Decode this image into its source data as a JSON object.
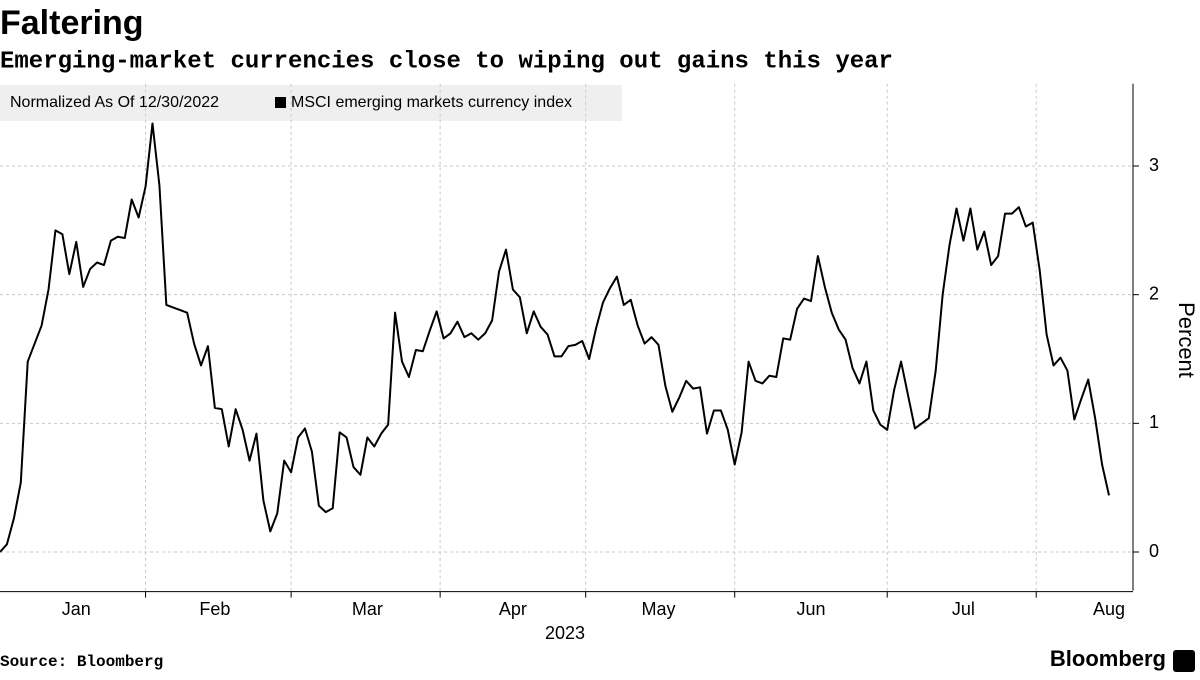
{
  "chart_data": {
    "type": "line",
    "title": "Faltering",
    "subtitle": "Emerging-market currencies close to wiping out gains this year",
    "legend_title": "Normalized As Of 12/30/2022",
    "x_label": "2023",
    "y_label": "Percent",
    "source": "Source: Bloomberg",
    "brand": "Bloomberg",
    "categories": [
      null,
      null,
      null,
      null,
      null,
      null,
      null,
      null,
      null,
      null,
      null,
      "Jan",
      null,
      null,
      null,
      null,
      null,
      null,
      null,
      null,
      null,
      null,
      null,
      null,
      null,
      null,
      null,
      null,
      null,
      null,
      null,
      "Feb",
      null,
      null,
      null,
      null,
      null,
      null,
      null,
      null,
      null,
      null,
      null,
      null,
      null,
      null,
      null,
      null,
      null,
      null,
      null,
      null,
      null,
      "Mar",
      null,
      null,
      null,
      null,
      null,
      null,
      null,
      null,
      null,
      null,
      null,
      null,
      null,
      null,
      null,
      null,
      null,
      null,
      null,
      null,
      "Apr",
      null,
      null,
      null,
      null,
      null,
      null,
      null,
      null,
      null,
      null,
      null,
      null,
      null,
      null,
      null,
      null,
      null,
      null,
      null,
      null,
      "May",
      null,
      null,
      null,
      null,
      null,
      null,
      null,
      null,
      null,
      null,
      null,
      null,
      null,
      null,
      null,
      null,
      null,
      null,
      null,
      null,
      null,
      "Jun",
      null,
      null,
      null,
      null,
      null,
      null,
      null,
      null,
      null,
      null,
      null,
      null,
      null,
      null,
      null,
      null,
      null,
      null,
      null,
      null,
      null,
      "Jul",
      null,
      null,
      null,
      null,
      null,
      null,
      null,
      null,
      null,
      null,
      null,
      null,
      null,
      null,
      null,
      null,
      null,
      null,
      null,
      null,
      "Aug"
    ],
    "series": [
      {
        "name": "MSCI emerging markets currency index",
        "color": "#000000",
        "values": [
          0,
          0.06,
          0.26,
          0.54,
          1.48,
          1.62,
          1.76,
          2.04,
          2.5,
          2.47,
          2.16,
          2.41,
          2.06,
          2.2,
          2.25,
          2.23,
          2.42,
          2.45,
          2.44,
          2.74,
          2.6,
          2.84,
          3.33,
          2.85,
          1.92,
          1.9,
          1.88,
          1.86,
          1.62,
          1.45,
          1.6,
          1.12,
          1.11,
          0.82,
          1.11,
          0.95,
          0.71,
          0.92,
          0.4,
          0.16,
          0.3,
          0.71,
          0.62,
          0.89,
          0.96,
          0.78,
          0.36,
          0.31,
          0.34,
          0.93,
          0.89,
          0.66,
          0.6,
          0.89,
          0.82,
          0.92,
          0.99,
          1.86,
          1.48,
          1.36,
          1.57,
          1.56,
          1.72,
          1.87,
          1.66,
          1.7,
          1.79,
          1.67,
          1.7,
          1.65,
          1.7,
          1.8,
          2.18,
          2.35,
          2.04,
          1.98,
          1.7,
          1.87,
          1.75,
          1.69,
          1.52,
          1.52,
          1.6,
          1.61,
          1.64,
          1.5,
          1.74,
          1.94,
          2.05,
          2.14,
          1.92,
          1.96,
          1.76,
          1.62,
          1.67,
          1.61,
          1.29,
          1.09,
          1.2,
          1.33,
          1.27,
          1.28,
          0.92,
          1.1,
          1.1,
          0.95,
          0.68,
          0.93,
          1.48,
          1.33,
          1.31,
          1.37,
          1.36,
          1.66,
          1.65,
          1.89,
          1.97,
          1.95,
          2.3,
          2.06,
          1.86,
          1.73,
          1.65,
          1.43,
          1.31,
          1.48,
          1.1,
          0.99,
          0.95,
          1.26,
          1.48,
          1.22,
          0.96,
          1.0,
          1.04,
          1.41,
          2.0,
          2.39,
          2.67,
          2.42,
          2.67,
          2.35,
          2.49,
          2.23,
          2.3,
          2.63,
          2.63,
          2.68,
          2.53,
          2.56,
          2.19,
          1.69,
          1.45,
          1.51,
          1.41,
          1.03,
          1.19,
          1.34,
          1.04,
          0.68,
          0.44
        ]
      }
    ],
    "ylim": [
      -0.3,
      3.6
    ],
    "yticks": [
      0,
      1,
      2,
      3
    ],
    "y_axis_side": "right",
    "grid": true,
    "legend": "top-left"
  }
}
